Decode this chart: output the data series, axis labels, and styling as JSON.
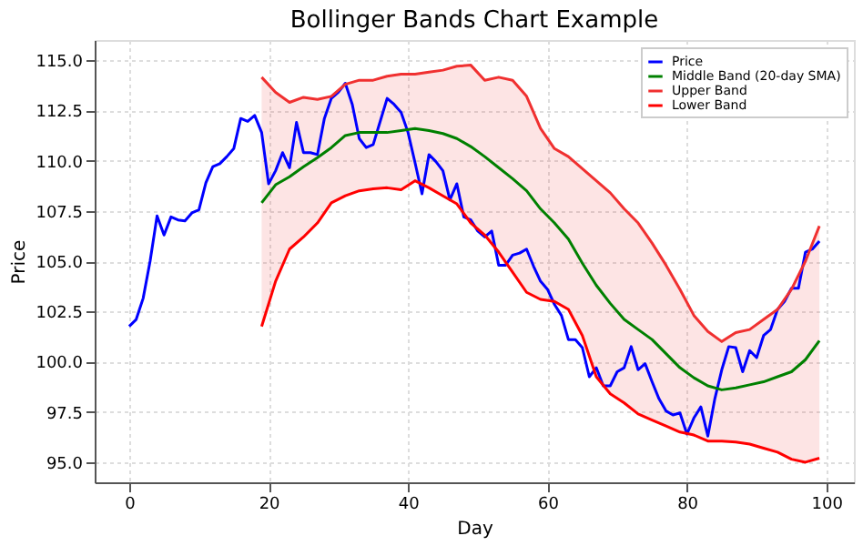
{
  "chart_data": {
    "type": "line",
    "title": "Bollinger Bands Chart Example",
    "xlabel": "Day",
    "ylabel": "Price",
    "xlim": [
      -4.95,
      103.95
    ],
    "xticks": [
      0,
      20,
      40,
      60,
      80,
      100
    ],
    "ylim": [
      94,
      116
    ],
    "yticks": [
      {
        "value": 95,
        "label": "95.0"
      },
      {
        "value": 97.5,
        "label": "97.5"
      },
      {
        "value": 100,
        "label": "100.0"
      },
      {
        "value": 102.5,
        "label": "102.5"
      },
      {
        "value": 105,
        "label": "105.0"
      },
      {
        "value": 107.5,
        "label": "107.5"
      },
      {
        "value": 110,
        "label": "110.0"
      },
      {
        "value": 112.5,
        "label": "112.5"
      },
      {
        "value": 115,
        "label": "115.0"
      }
    ],
    "grid": true,
    "legend": "top right",
    "line_style": "solid",
    "series": [
      {
        "name": "Price",
        "color": "#0000ff",
        "x": [
          0,
          1,
          2,
          3,
          4,
          5,
          6,
          7,
          8,
          9,
          10,
          11,
          12,
          13,
          14,
          15,
          16,
          17,
          18,
          19,
          20,
          21,
          22,
          23,
          24,
          25,
          26,
          27,
          28,
          29,
          30,
          31,
          32,
          33,
          34,
          35,
          36,
          37,
          38,
          39,
          40,
          41,
          42,
          43,
          44,
          45,
          46,
          47,
          48,
          49,
          50,
          51,
          52,
          53,
          54,
          55,
          56,
          57,
          58,
          59,
          60,
          61,
          62,
          63,
          64,
          65,
          66,
          67,
          68,
          69,
          70,
          71,
          72,
          73,
          74,
          75,
          76,
          77,
          78,
          79,
          80,
          81,
          82,
          83,
          84,
          85,
          86,
          87,
          88,
          89,
          90,
          91,
          92,
          93,
          94,
          95,
          96,
          97,
          98,
          99
        ],
        "values": [
          101.76,
          102.1,
          103.15,
          105.0,
          107.25,
          106.3,
          107.2,
          107.05,
          107.0,
          107.4,
          107.55,
          108.9,
          109.7,
          109.85,
          110.2,
          110.6,
          112.1,
          111.95,
          112.25,
          111.4,
          108.85,
          109.5,
          110.4,
          109.65,
          111.9,
          110.4,
          110.4,
          110.3,
          112.1,
          113.1,
          113.4,
          113.85,
          112.8,
          111.1,
          110.65,
          110.8,
          111.95,
          113.1,
          112.8,
          112.4,
          111.4,
          109.9,
          108.35,
          110.3,
          109.95,
          109.5,
          108.05,
          108.85,
          107.2,
          107.05,
          106.5,
          106.2,
          106.5,
          104.8,
          104.8,
          105.3,
          105.4,
          105.6,
          104.75,
          104.0,
          103.6,
          102.85,
          102.3,
          101.1,
          101.1,
          100.7,
          99.25,
          99.7,
          98.8,
          98.8,
          99.5,
          99.7,
          100.75,
          99.6,
          99.9,
          99.0,
          98.15,
          97.55,
          97.35,
          97.45,
          96.4,
          97.2,
          97.75,
          96.3,
          98.15,
          99.6,
          100.75,
          100.7,
          99.5,
          100.55,
          100.2,
          101.3,
          101.6,
          102.6,
          103.0,
          103.65,
          103.65,
          105.45,
          105.6,
          106.0
        ]
      },
      {
        "name": "Middle Band (20-day SMA)",
        "color": "#008000",
        "x": [
          19,
          21,
          23,
          25,
          27,
          29,
          31,
          33,
          35,
          37,
          39,
          41,
          43,
          45,
          47,
          49,
          51,
          53,
          55,
          57,
          59,
          61,
          63,
          65,
          67,
          69,
          71,
          73,
          75,
          77,
          79,
          81,
          83,
          85,
          87,
          89,
          91,
          93,
          95,
          97,
          99
        ],
        "values": [
          107.9,
          108.8,
          109.2,
          109.7,
          110.15,
          110.65,
          111.25,
          111.4,
          111.4,
          111.4,
          111.5,
          111.6,
          111.5,
          111.35,
          111.1,
          110.7,
          110.2,
          109.65,
          109.1,
          108.5,
          107.6,
          106.9,
          106.1,
          104.9,
          103.8,
          102.9,
          102.1,
          101.6,
          101.1,
          100.4,
          99.7,
          99.2,
          98.8,
          98.6,
          98.7,
          98.85,
          99.0,
          99.25,
          99.5,
          100.1,
          101.05
        ]
      },
      {
        "name": "Upper Band",
        "type": "area",
        "color": "#f03030",
        "x": [
          19,
          21,
          23,
          25,
          27,
          29,
          31,
          33,
          35,
          37,
          39,
          41,
          43,
          45,
          47,
          49,
          51,
          53,
          55,
          57,
          59,
          61,
          63,
          65,
          67,
          69,
          71,
          73,
          75,
          77,
          79,
          81,
          83,
          85,
          87,
          89,
          91,
          93,
          95,
          97,
          99
        ],
        "values": [
          114.15,
          113.4,
          112.9,
          113.15,
          113.05,
          113.2,
          113.8,
          114.0,
          114.0,
          114.2,
          114.3,
          114.3,
          114.4,
          114.5,
          114.7,
          114.75,
          114.0,
          114.15,
          114.0,
          113.2,
          111.6,
          110.6,
          110.2,
          109.6,
          109.0,
          108.4,
          107.6,
          106.9,
          105.9,
          104.8,
          103.6,
          102.3,
          101.5,
          101.0,
          101.45,
          101.6,
          102.1,
          102.6,
          103.6,
          105.0,
          106.75
        ]
      },
      {
        "name": "Lower Band",
        "color": "#ff0000",
        "x": [
          19,
          21,
          23,
          25,
          27,
          29,
          31,
          33,
          35,
          37,
          39,
          41,
          43,
          45,
          47,
          49,
          51,
          53,
          55,
          57,
          59,
          61,
          63,
          65,
          67,
          69,
          71,
          73,
          75,
          77,
          79,
          81,
          83,
          85,
          87,
          89,
          91,
          93,
          95,
          97,
          99
        ],
        "values": [
          101.75,
          104.0,
          105.6,
          106.2,
          106.9,
          107.9,
          108.25,
          108.5,
          108.6,
          108.65,
          108.55,
          109.0,
          108.65,
          108.25,
          107.85,
          106.9,
          106.3,
          105.45,
          104.45,
          103.45,
          103.1,
          103.0,
          102.6,
          101.3,
          99.25,
          98.4,
          97.95,
          97.4,
          97.1,
          96.8,
          96.5,
          96.35,
          96.05,
          96.05,
          96.0,
          95.9,
          95.7,
          95.5,
          95.15,
          95.0,
          95.2
        ]
      }
    ]
  }
}
